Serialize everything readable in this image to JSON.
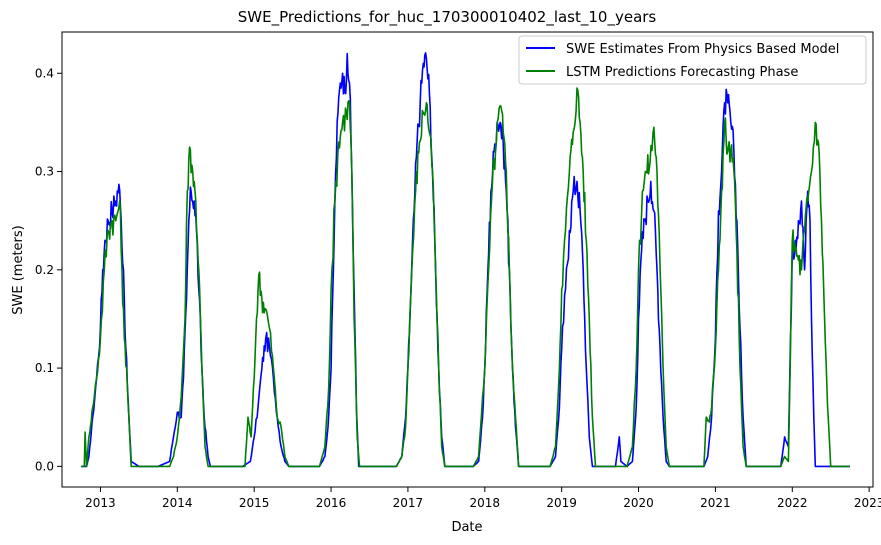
{
  "chart_data": {
    "type": "line",
    "title": "SWE_Predictions_for_huc_170300010402_last_10_years",
    "xlabel": "Date",
    "ylabel": "SWE (meters)",
    "xlim": [
      2012.5,
      2023.05
    ],
    "ylim": [
      -0.021,
      0.442
    ],
    "xticks": [
      2013,
      2014,
      2015,
      2016,
      2017,
      2018,
      2019,
      2020,
      2021,
      2022,
      2023
    ],
    "yticks": [
      0.0,
      0.1,
      0.2,
      0.3,
      0.4
    ],
    "ytick_labels": [
      "0.0",
      "0.1",
      "0.2",
      "0.3",
      "0.4"
    ],
    "grid": false,
    "legend_position": "top-right",
    "series": [
      {
        "name": "SWE Estimates From Physics Based Model",
        "color": "#0000ff",
        "points": [
          [
            2012.75,
            0.0
          ],
          [
            2012.82,
            0.0
          ],
          [
            2012.85,
            0.01
          ],
          [
            2012.9,
            0.05
          ],
          [
            2012.95,
            0.09
          ],
          [
            2013.0,
            0.14
          ],
          [
            2013.03,
            0.2
          ],
          [
            2013.06,
            0.23
          ],
          [
            2013.1,
            0.25
          ],
          [
            2013.15,
            0.26
          ],
          [
            2013.2,
            0.27
          ],
          [
            2013.24,
            0.287
          ],
          [
            2013.27,
            0.25
          ],
          [
            2013.3,
            0.2
          ],
          [
            2013.33,
            0.12
          ],
          [
            2013.37,
            0.05
          ],
          [
            2013.4,
            0.005
          ],
          [
            2013.5,
            0.0
          ],
          [
            2013.75,
            0.0
          ],
          [
            2013.9,
            0.005
          ],
          [
            2013.95,
            0.03
          ],
          [
            2014.0,
            0.055
          ],
          [
            2014.05,
            0.05
          ],
          [
            2014.08,
            0.09
          ],
          [
            2014.12,
            0.17
          ],
          [
            2014.15,
            0.25
          ],
          [
            2014.18,
            0.28
          ],
          [
            2014.22,
            0.27
          ],
          [
            2014.25,
            0.24
          ],
          [
            2014.28,
            0.18
          ],
          [
            2014.32,
            0.1
          ],
          [
            2014.35,
            0.05
          ],
          [
            2014.4,
            0.01
          ],
          [
            2014.43,
            0.0
          ],
          [
            2014.85,
            0.0
          ],
          [
            2014.95,
            0.005
          ],
          [
            2015.0,
            0.03
          ],
          [
            2015.05,
            0.06
          ],
          [
            2015.1,
            0.1
          ],
          [
            2015.15,
            0.13
          ],
          [
            2015.2,
            0.12
          ],
          [
            2015.25,
            0.09
          ],
          [
            2015.3,
            0.05
          ],
          [
            2015.35,
            0.02
          ],
          [
            2015.4,
            0.005
          ],
          [
            2015.45,
            0.0
          ],
          [
            2015.85,
            0.0
          ],
          [
            2015.92,
            0.01
          ],
          [
            2015.96,
            0.04
          ],
          [
            2016.0,
            0.1
          ],
          [
            2016.03,
            0.2
          ],
          [
            2016.06,
            0.3
          ],
          [
            2016.09,
            0.36
          ],
          [
            2016.12,
            0.39
          ],
          [
            2016.15,
            0.4
          ],
          [
            2016.18,
            0.38
          ],
          [
            2016.21,
            0.42
          ],
          [
            2016.24,
            0.39
          ],
          [
            2016.27,
            0.3
          ],
          [
            2016.3,
            0.18
          ],
          [
            2016.33,
            0.06
          ],
          [
            2016.36,
            0.0
          ],
          [
            2016.85,
            0.0
          ],
          [
            2016.92,
            0.01
          ],
          [
            2016.97,
            0.05
          ],
          [
            2017.0,
            0.1
          ],
          [
            2017.04,
            0.18
          ],
          [
            2017.08,
            0.26
          ],
          [
            2017.12,
            0.33
          ],
          [
            2017.16,
            0.37
          ],
          [
            2017.2,
            0.41
          ],
          [
            2017.24,
            0.415
          ],
          [
            2017.28,
            0.38
          ],
          [
            2017.32,
            0.3
          ],
          [
            2017.36,
            0.2
          ],
          [
            2017.4,
            0.1
          ],
          [
            2017.44,
            0.03
          ],
          [
            2017.48,
            0.0
          ],
          [
            2017.85,
            0.0
          ],
          [
            2017.92,
            0.005
          ],
          [
            2017.97,
            0.05
          ],
          [
            2018.0,
            0.1
          ],
          [
            2018.04,
            0.2
          ],
          [
            2018.08,
            0.28
          ],
          [
            2018.12,
            0.32
          ],
          [
            2018.16,
            0.35
          ],
          [
            2018.2,
            0.35
          ],
          [
            2018.24,
            0.33
          ],
          [
            2018.28,
            0.28
          ],
          [
            2018.32,
            0.2
          ],
          [
            2018.36,
            0.1
          ],
          [
            2018.4,
            0.04
          ],
          [
            2018.44,
            0.0
          ],
          [
            2018.85,
            0.0
          ],
          [
            2018.92,
            0.01
          ],
          [
            2018.97,
            0.06
          ],
          [
            2019.0,
            0.12
          ],
          [
            2019.05,
            0.18
          ],
          [
            2019.1,
            0.24
          ],
          [
            2019.15,
            0.28
          ],
          [
            2019.2,
            0.29
          ],
          [
            2019.24,
            0.26
          ],
          [
            2019.28,
            0.2
          ],
          [
            2019.32,
            0.1
          ],
          [
            2019.36,
            0.03
          ],
          [
            2019.4,
            0.0
          ],
          [
            2019.7,
            0.0
          ],
          [
            2019.75,
            0.03
          ],
          [
            2019.77,
            0.005
          ],
          [
            2019.85,
            0.0
          ],
          [
            2019.92,
            0.005
          ],
          [
            2019.97,
            0.06
          ],
          [
            2020.0,
            0.15
          ],
          [
            2020.04,
            0.22
          ],
          [
            2020.08,
            0.25
          ],
          [
            2020.12,
            0.27
          ],
          [
            2020.16,
            0.29
          ],
          [
            2020.2,
            0.26
          ],
          [
            2020.24,
            0.2
          ],
          [
            2020.28,
            0.12
          ],
          [
            2020.32,
            0.05
          ],
          [
            2020.36,
            0.005
          ],
          [
            2020.4,
            0.0
          ],
          [
            2020.85,
            0.0
          ],
          [
            2020.9,
            0.01
          ],
          [
            2020.95,
            0.05
          ],
          [
            2021.0,
            0.13
          ],
          [
            2021.04,
            0.26
          ],
          [
            2021.08,
            0.3
          ],
          [
            2021.12,
            0.37
          ],
          [
            2021.16,
            0.37
          ],
          [
            2021.2,
            0.35
          ],
          [
            2021.24,
            0.32
          ],
          [
            2021.28,
            0.25
          ],
          [
            2021.32,
            0.14
          ],
          [
            2021.36,
            0.05
          ],
          [
            2021.4,
            0.0
          ],
          [
            2021.85,
            0.0
          ],
          [
            2021.9,
            0.03
          ],
          [
            2021.95,
            0.02
          ],
          [
            2022.0,
            0.22
          ],
          [
            2022.04,
            0.23
          ],
          [
            2022.08,
            0.25
          ],
          [
            2022.12,
            0.27
          ],
          [
            2022.16,
            0.2
          ],
          [
            2022.2,
            0.28
          ],
          [
            2022.23,
            0.25
          ],
          [
            2022.25,
            0.15
          ],
          [
            2022.28,
            0.05
          ],
          [
            2022.3,
            0.0
          ],
          [
            2022.5,
            0.0
          ],
          [
            2022.75,
            0.0
          ]
        ]
      },
      {
        "name": "LSTM Predictions Forecasting Phase",
        "color": "#008000",
        "points": [
          [
            2012.75,
            0.0
          ],
          [
            2012.79,
            0.0
          ],
          [
            2012.8,
            0.035
          ],
          [
            2012.82,
            0.0
          ],
          [
            2012.85,
            0.03
          ],
          [
            2012.9,
            0.06
          ],
          [
            2012.95,
            0.09
          ],
          [
            2013.0,
            0.13
          ],
          [
            2013.05,
            0.2
          ],
          [
            2013.1,
            0.24
          ],
          [
            2013.15,
            0.25
          ],
          [
            2013.2,
            0.25
          ],
          [
            2013.25,
            0.27
          ],
          [
            2013.28,
            0.2
          ],
          [
            2013.31,
            0.13
          ],
          [
            2013.34,
            0.1
          ],
          [
            2013.37,
            0.05
          ],
          [
            2013.4,
            0.0
          ],
          [
            2013.9,
            0.0
          ],
          [
            2013.95,
            0.01
          ],
          [
            2014.0,
            0.03
          ],
          [
            2014.05,
            0.07
          ],
          [
            2014.1,
            0.15
          ],
          [
            2014.13,
            0.28
          ],
          [
            2014.16,
            0.325
          ],
          [
            2014.2,
            0.3
          ],
          [
            2014.24,
            0.27
          ],
          [
            2014.28,
            0.2
          ],
          [
            2014.32,
            0.1
          ],
          [
            2014.36,
            0.02
          ],
          [
            2014.4,
            0.0
          ],
          [
            2014.88,
            0.0
          ],
          [
            2014.92,
            0.05
          ],
          [
            2014.96,
            0.03
          ],
          [
            2015.0,
            0.09
          ],
          [
            2015.03,
            0.15
          ],
          [
            2015.06,
            0.195
          ],
          [
            2015.1,
            0.17
          ],
          [
            2015.15,
            0.16
          ],
          [
            2015.2,
            0.14
          ],
          [
            2015.25,
            0.1
          ],
          [
            2015.3,
            0.05
          ],
          [
            2015.35,
            0.04
          ],
          [
            2015.4,
            0.01
          ],
          [
            2015.45,
            0.0
          ],
          [
            2015.85,
            0.0
          ],
          [
            2015.92,
            0.02
          ],
          [
            2015.97,
            0.08
          ],
          [
            2016.0,
            0.18
          ],
          [
            2016.05,
            0.27
          ],
          [
            2016.1,
            0.33
          ],
          [
            2016.15,
            0.35
          ],
          [
            2016.2,
            0.36
          ],
          [
            2016.24,
            0.37
          ],
          [
            2016.27,
            0.3
          ],
          [
            2016.3,
            0.15
          ],
          [
            2016.34,
            0.03
          ],
          [
            2016.37,
            0.0
          ],
          [
            2016.85,
            0.0
          ],
          [
            2016.92,
            0.01
          ],
          [
            2016.97,
            0.04
          ],
          [
            2017.0,
            0.1
          ],
          [
            2017.05,
            0.2
          ],
          [
            2017.1,
            0.28
          ],
          [
            2017.15,
            0.33
          ],
          [
            2017.2,
            0.36
          ],
          [
            2017.24,
            0.37
          ],
          [
            2017.28,
            0.34
          ],
          [
            2017.32,
            0.3
          ],
          [
            2017.36,
            0.2
          ],
          [
            2017.4,
            0.1
          ],
          [
            2017.44,
            0.02
          ],
          [
            2017.48,
            0.0
          ],
          [
            2017.85,
            0.0
          ],
          [
            2017.92,
            0.01
          ],
          [
            2017.97,
            0.07
          ],
          [
            2018.0,
            0.1
          ],
          [
            2018.05,
            0.2
          ],
          [
            2018.1,
            0.29
          ],
          [
            2018.15,
            0.33
          ],
          [
            2018.2,
            0.367
          ],
          [
            2018.24,
            0.34
          ],
          [
            2018.28,
            0.3
          ],
          [
            2018.32,
            0.2
          ],
          [
            2018.36,
            0.1
          ],
          [
            2018.4,
            0.05
          ],
          [
            2018.44,
            0.0
          ],
          [
            2018.85,
            0.0
          ],
          [
            2018.92,
            0.02
          ],
          [
            2018.97,
            0.1
          ],
          [
            2019.0,
            0.18
          ],
          [
            2019.05,
            0.24
          ],
          [
            2019.1,
            0.3
          ],
          [
            2019.15,
            0.34
          ],
          [
            2019.2,
            0.385
          ],
          [
            2019.24,
            0.35
          ],
          [
            2019.28,
            0.3
          ],
          [
            2019.32,
            0.23
          ],
          [
            2019.36,
            0.15
          ],
          [
            2019.4,
            0.05
          ],
          [
            2019.44,
            0.0
          ],
          [
            2019.85,
            0.0
          ],
          [
            2019.92,
            0.02
          ],
          [
            2019.97,
            0.1
          ],
          [
            2020.0,
            0.2
          ],
          [
            2020.05,
            0.28
          ],
          [
            2020.1,
            0.3
          ],
          [
            2020.15,
            0.31
          ],
          [
            2020.2,
            0.345
          ],
          [
            2020.24,
            0.3
          ],
          [
            2020.28,
            0.2
          ],
          [
            2020.32,
            0.1
          ],
          [
            2020.36,
            0.02
          ],
          [
            2020.4,
            0.0
          ],
          [
            2020.85,
            0.0
          ],
          [
            2020.88,
            0.05
          ],
          [
            2020.92,
            0.045
          ],
          [
            2020.95,
            0.06
          ],
          [
            2021.0,
            0.12
          ],
          [
            2021.04,
            0.2
          ],
          [
            2021.08,
            0.28
          ],
          [
            2021.12,
            0.35
          ],
          [
            2021.16,
            0.32
          ],
          [
            2021.2,
            0.32
          ],
          [
            2021.24,
            0.3
          ],
          [
            2021.28,
            0.22
          ],
          [
            2021.32,
            0.1
          ],
          [
            2021.36,
            0.02
          ],
          [
            2021.4,
            0.0
          ],
          [
            2021.85,
            0.0
          ],
          [
            2021.9,
            0.01
          ],
          [
            2021.95,
            0.005
          ],
          [
            2022.0,
            0.23
          ],
          [
            2022.04,
            0.22
          ],
          [
            2022.08,
            0.21
          ],
          [
            2022.12,
            0.2
          ],
          [
            2022.16,
            0.24
          ],
          [
            2022.2,
            0.27
          ],
          [
            2022.25,
            0.3
          ],
          [
            2022.3,
            0.35
          ],
          [
            2022.34,
            0.33
          ],
          [
            2022.38,
            0.25
          ],
          [
            2022.42,
            0.15
          ],
          [
            2022.46,
            0.06
          ],
          [
            2022.5,
            0.0
          ],
          [
            2022.75,
            0.0
          ]
        ]
      }
    ]
  }
}
